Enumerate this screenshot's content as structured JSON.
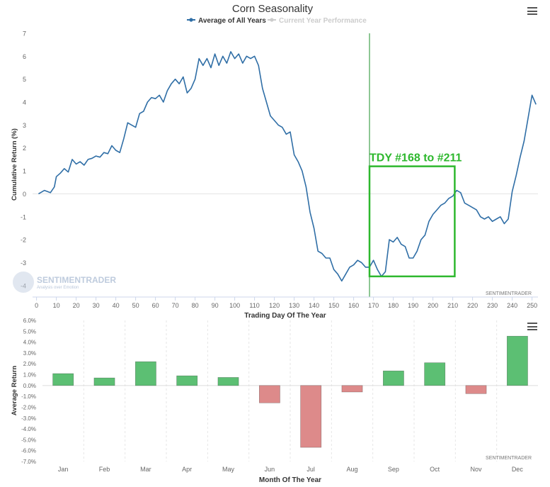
{
  "chart_data": [
    {
      "type": "line",
      "title": "Corn Seasonality",
      "xlabel": "Trading Day Of The Year",
      "ylabel": "Cumulative Return (%)",
      "xlim": [
        -2,
        253
      ],
      "ylim": [
        -4.5,
        7
      ],
      "x_ticks": [
        0,
        10,
        20,
        30,
        40,
        50,
        60,
        70,
        80,
        90,
        100,
        110,
        120,
        130,
        140,
        150,
        160,
        170,
        180,
        190,
        200,
        210,
        220,
        230,
        240,
        250
      ],
      "y_ticks": [
        -4,
        -3,
        -2,
        -1,
        0,
        1,
        2,
        3,
        4,
        5,
        6,
        7
      ],
      "legend": [
        "Average of All Years",
        "Current Year Performance"
      ],
      "legend_colors": [
        "#2f6ea6",
        "#cccccc"
      ],
      "series": [
        {
          "name": "Average of All Years",
          "color": "#2f6ea6",
          "points": [
            [
              1,
              0
            ],
            [
              4,
              0.15
            ],
            [
              7,
              0.05
            ],
            [
              9,
              0.3
            ],
            [
              10,
              0.75
            ],
            [
              12,
              0.9
            ],
            [
              14,
              1.1
            ],
            [
              16,
              0.95
            ],
            [
              18,
              1.5
            ],
            [
              20,
              1.3
            ],
            [
              22,
              1.4
            ],
            [
              24,
              1.25
            ],
            [
              26,
              1.5
            ],
            [
              28,
              1.55
            ],
            [
              30,
              1.65
            ],
            [
              32,
              1.6
            ],
            [
              34,
              1.8
            ],
            [
              36,
              1.75
            ],
            [
              38,
              2.1
            ],
            [
              40,
              1.9
            ],
            [
              42,
              1.8
            ],
            [
              44,
              2.4
            ],
            [
              46,
              3.1
            ],
            [
              48,
              3.0
            ],
            [
              50,
              2.9
            ],
            [
              52,
              3.5
            ],
            [
              54,
              3.6
            ],
            [
              56,
              4.0
            ],
            [
              58,
              4.2
            ],
            [
              60,
              4.15
            ],
            [
              62,
              4.3
            ],
            [
              64,
              4.0
            ],
            [
              66,
              4.5
            ],
            [
              68,
              4.8
            ],
            [
              70,
              5.0
            ],
            [
              72,
              4.8
            ],
            [
              74,
              5.1
            ],
            [
              76,
              4.4
            ],
            [
              78,
              4.6
            ],
            [
              80,
              5.0
            ],
            [
              82,
              5.9
            ],
            [
              84,
              5.6
            ],
            [
              86,
              5.9
            ],
            [
              88,
              5.5
            ],
            [
              90,
              6.1
            ],
            [
              92,
              5.6
            ],
            [
              94,
              6.0
            ],
            [
              96,
              5.7
            ],
            [
              98,
              6.2
            ],
            [
              100,
              5.9
            ],
            [
              102,
              6.1
            ],
            [
              104,
              5.7
            ],
            [
              106,
              6.0
            ],
            [
              108,
              5.9
            ],
            [
              110,
              6.0
            ],
            [
              112,
              5.6
            ],
            [
              114,
              4.6
            ],
            [
              116,
              4.0
            ],
            [
              118,
              3.4
            ],
            [
              120,
              3.2
            ],
            [
              122,
              3.0
            ],
            [
              124,
              2.9
            ],
            [
              126,
              2.6
            ],
            [
              128,
              2.7
            ],
            [
              130,
              1.7
            ],
            [
              132,
              1.4
            ],
            [
              134,
              1.0
            ],
            [
              136,
              0.3
            ],
            [
              138,
              -0.8
            ],
            [
              140,
              -1.5
            ],
            [
              142,
              -2.5
            ],
            [
              144,
              -2.6
            ],
            [
              146,
              -2.8
            ],
            [
              148,
              -2.8
            ],
            [
              150,
              -3.3
            ],
            [
              152,
              -3.5
            ],
            [
              154,
              -3.8
            ],
            [
              156,
              -3.5
            ],
            [
              158,
              -3.2
            ],
            [
              160,
              -3.1
            ],
            [
              162,
              -2.9
            ],
            [
              164,
              -3.0
            ],
            [
              166,
              -3.2
            ],
            [
              168,
              -3.2
            ],
            [
              170,
              -2.9
            ],
            [
              172,
              -3.3
            ],
            [
              174,
              -3.6
            ],
            [
              176,
              -3.4
            ],
            [
              178,
              -2.0
            ],
            [
              180,
              -2.1
            ],
            [
              182,
              -1.9
            ],
            [
              184,
              -2.2
            ],
            [
              186,
              -2.3
            ],
            [
              188,
              -2.8
            ],
            [
              190,
              -2.8
            ],
            [
              192,
              -2.5
            ],
            [
              194,
              -2.0
            ],
            [
              196,
              -1.8
            ],
            [
              198,
              -1.2
            ],
            [
              200,
              -0.9
            ],
            [
              202,
              -0.7
            ],
            [
              204,
              -0.5
            ],
            [
              206,
              -0.4
            ],
            [
              208,
              -0.2
            ],
            [
              210,
              -0.1
            ],
            [
              212,
              0.15
            ],
            [
              214,
              0.05
            ],
            [
              216,
              -0.4
            ],
            [
              218,
              -0.5
            ],
            [
              220,
              -0.6
            ],
            [
              222,
              -0.7
            ],
            [
              224,
              -1.0
            ],
            [
              226,
              -1.1
            ],
            [
              228,
              -1.0
            ],
            [
              230,
              -1.2
            ],
            [
              232,
              -1.1
            ],
            [
              234,
              -1.0
            ],
            [
              236,
              -1.3
            ],
            [
              238,
              -1.1
            ],
            [
              240,
              0.1
            ],
            [
              242,
              0.8
            ],
            [
              244,
              1.6
            ],
            [
              246,
              2.3
            ],
            [
              248,
              3.3
            ],
            [
              250,
              4.3
            ],
            [
              252,
              3.9
            ]
          ]
        }
      ],
      "annotation": {
        "label": "TDY #168 to #211",
        "x_start": 168,
        "x_end": 211,
        "y_low": -3.6,
        "y_high": 1.2,
        "color": "#2eb82e"
      },
      "vertical_line_x": 168,
      "watermark": "SENTIMENTRADER",
      "watermark_sub": "Analysis over Emotion",
      "credit": "SENTIMENTRADER"
    },
    {
      "type": "bar",
      "xlabel": "Month Of The Year",
      "ylabel": "Average Return",
      "ylim": [
        -7,
        6
      ],
      "y_ticks": [
        6,
        5,
        4,
        3,
        2,
        1,
        0,
        -1,
        -2,
        -3,
        -4,
        -5,
        -6,
        -7
      ],
      "y_tick_labels": [
        "6.0%",
        "5.0%",
        "4.0%",
        "3.0%",
        "2.0%",
        "1.0%",
        "0.0%",
        "-1.0%",
        "-2.0%",
        "-3.0%",
        "-4.0%",
        "-5.0%",
        "-6.0%",
        "-7.0%"
      ],
      "categories": [
        "Jan",
        "Feb",
        "Mar",
        "Apr",
        "May",
        "Jun",
        "Jul",
        "Aug",
        "Sep",
        "Oct",
        "Nov",
        "Dec"
      ],
      "values": [
        1.1,
        0.7,
        2.2,
        0.9,
        0.75,
        -1.6,
        -5.7,
        -0.6,
        1.35,
        2.1,
        -0.75,
        4.55
      ],
      "positive_color": "#5cbf73",
      "negative_color": "#dd8a8a",
      "credit": "SENTIMENTRADER"
    }
  ]
}
